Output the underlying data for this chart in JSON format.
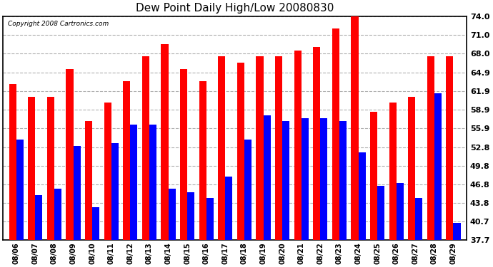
{
  "title": "Dew Point Daily High/Low 20080830",
  "copyright": "Copyright 2008 Cartronics.com",
  "dates": [
    "08/06",
    "08/07",
    "08/08",
    "08/09",
    "08/10",
    "08/11",
    "08/12",
    "08/13",
    "08/14",
    "08/15",
    "08/16",
    "08/17",
    "08/18",
    "08/19",
    "08/20",
    "08/21",
    "08/22",
    "08/23",
    "08/24",
    "08/25",
    "08/26",
    "08/27",
    "08/28",
    "08/29"
  ],
  "highs": [
    63.0,
    61.0,
    61.0,
    65.5,
    57.0,
    60.0,
    63.5,
    67.5,
    69.5,
    65.5,
    63.5,
    67.5,
    66.5,
    67.5,
    67.5,
    68.5,
    69.0,
    72.0,
    74.5,
    58.5,
    60.0,
    61.0,
    67.5,
    67.5
  ],
  "lows": [
    54.0,
    45.0,
    46.0,
    53.0,
    43.0,
    53.5,
    56.5,
    56.5,
    46.0,
    45.5,
    44.5,
    48.0,
    54.0,
    58.0,
    57.0,
    57.5,
    57.5,
    57.0,
    52.0,
    46.5,
    47.0,
    44.5,
    61.5,
    40.5
  ],
  "high_color": "#ff0000",
  "low_color": "#0000ff",
  "bg_color": "#ffffff",
  "plot_bg_color": "#ffffff",
  "grid_color": "#b0b0b0",
  "yticks": [
    37.7,
    40.7,
    43.8,
    46.8,
    49.8,
    52.8,
    55.9,
    58.9,
    61.9,
    64.9,
    68.0,
    71.0,
    74.0
  ],
  "ymin": 37.7,
  "ymax": 74.0,
  "bar_width": 0.38
}
